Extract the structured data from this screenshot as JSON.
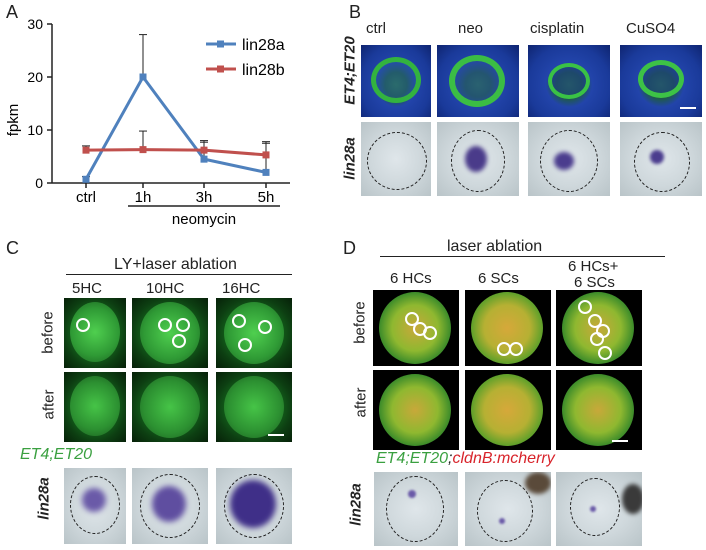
{
  "panels": {
    "A": "A",
    "B": "B",
    "C": "C",
    "D": "D"
  },
  "chart_data": {
    "type": "line",
    "categories": [
      "ctrl",
      "1h",
      "3h",
      "5h"
    ],
    "series": [
      {
        "name": "lin28a",
        "values": [
          0.7,
          20,
          4.5,
          2
        ],
        "errors": [
          0.5,
          8,
          3.2,
          5.5
        ],
        "color": "#4f81bd"
      },
      {
        "name": "lin28b",
        "values": [
          6.2,
          6.3,
          6.2,
          5.3
        ],
        "errors": [
          0.8,
          3.5,
          1.8,
          2.5
        ],
        "color": "#c0504d"
      }
    ],
    "ylabel": "fpkm",
    "ylim": [
      0,
      30
    ],
    "yticks": [
      0,
      10,
      20,
      30
    ],
    "group_label": "neomycin",
    "legend": "top-right",
    "grid": false
  },
  "panelB": {
    "cols": [
      "ctrl",
      "neo",
      "cisplatin",
      "CuSO4"
    ],
    "row1": "ET4;ET20",
    "row2": "lin28a"
  },
  "panelC": {
    "title": "LY+laser ablation",
    "cols": [
      "5HC",
      "10HC",
      "16HC"
    ],
    "row_before": "before",
    "row_after": "after",
    "marker": "ET4;ET20",
    "row_ish": "lin28a"
  },
  "panelD": {
    "title": "laser ablation",
    "cols": [
      "6 HCs",
      "6 SCs",
      "6 HCs+"
    ],
    "col3_line2": "6 SCs",
    "row_before": "before",
    "row_after": "after",
    "marker_green": "ET4;ET20",
    "marker_sep": ";",
    "marker_red": "cldnB:mcherry",
    "row_ish": "lin28a"
  }
}
